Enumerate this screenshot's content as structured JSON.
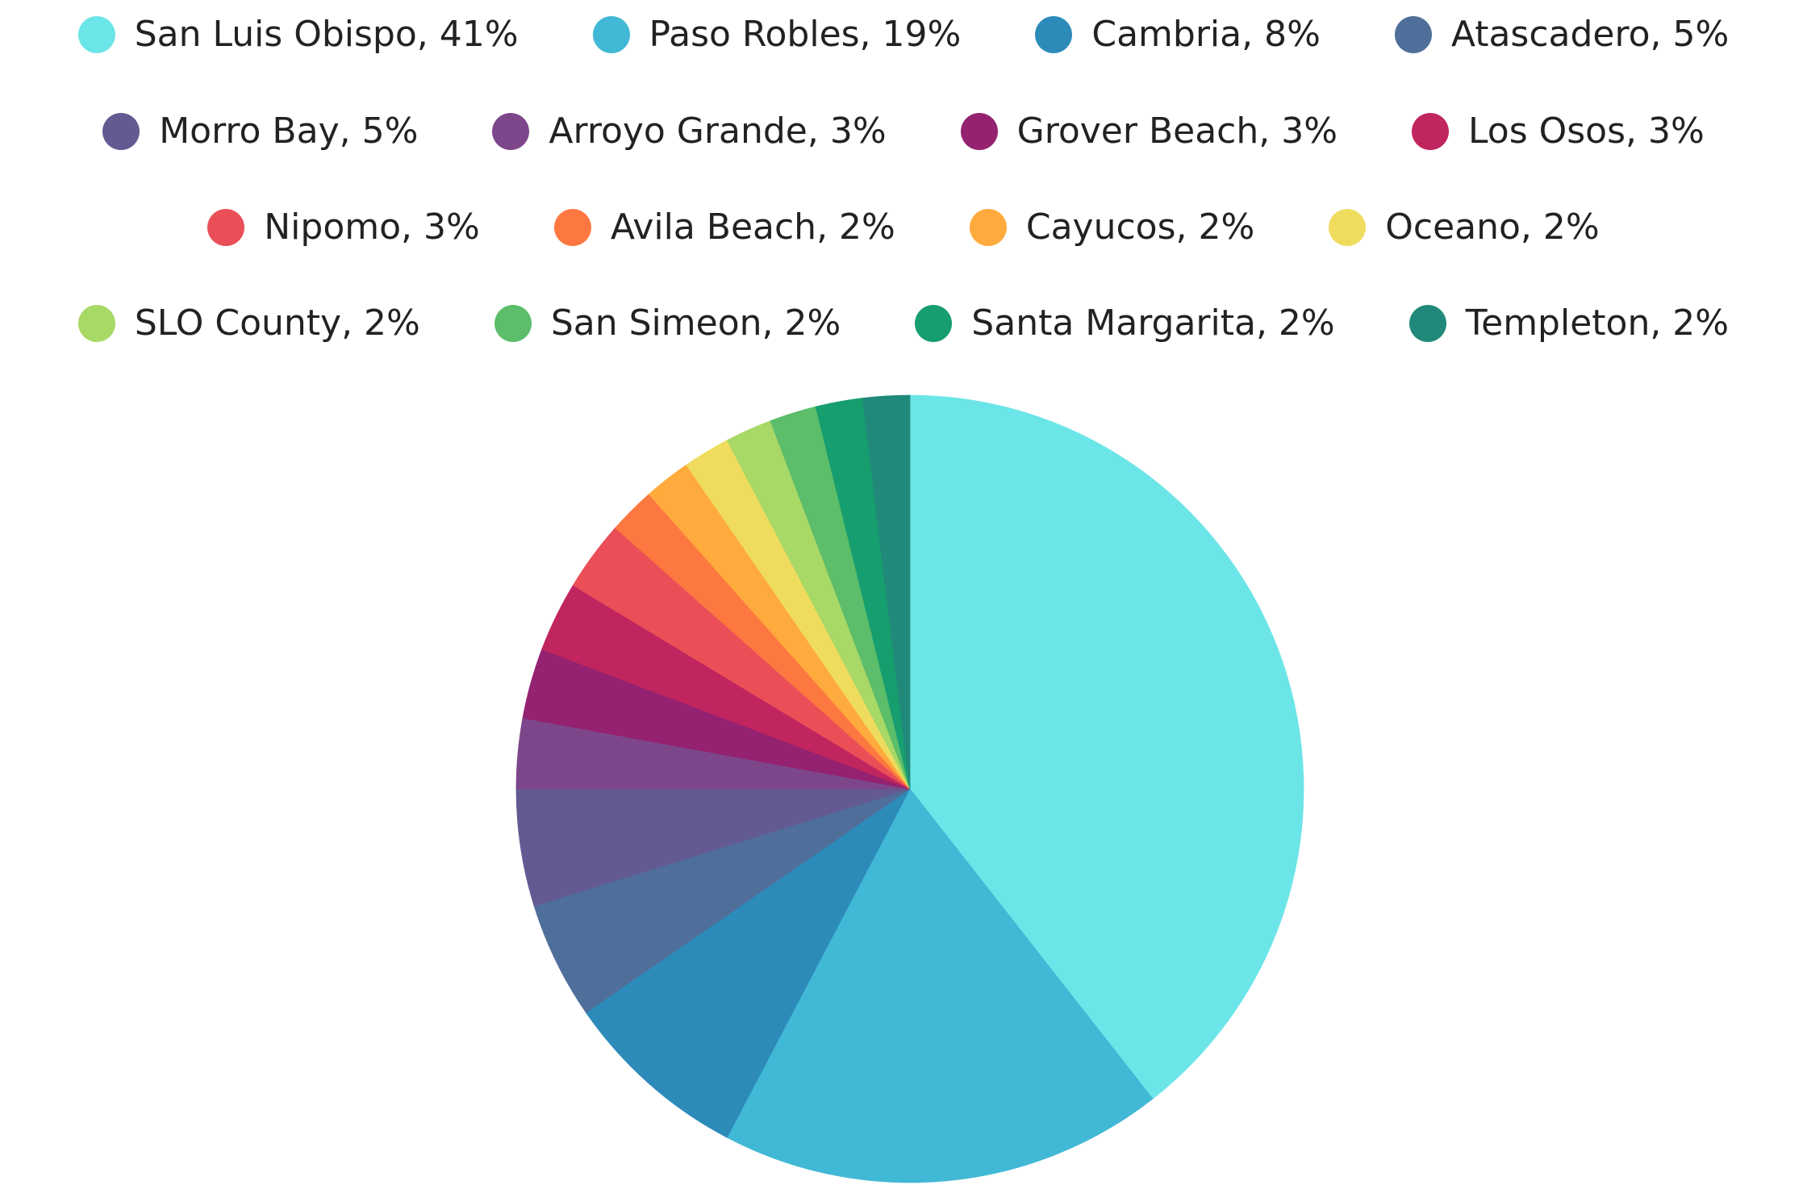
{
  "chart_data": {
    "type": "pie",
    "title": "",
    "legend_position": "top",
    "slices": [
      {
        "label": "San Luis Obispo, 41%",
        "name": "San Luis Obispo",
        "value": 41,
        "color": "#6ce5e8"
      },
      {
        "label": "Paso Robles, 19%",
        "name": "Paso Robles",
        "value": 19,
        "color": "#41b8d5"
      },
      {
        "label": "Cambria, 8%",
        "name": "Cambria",
        "value": 8,
        "color": "#2d8bba"
      },
      {
        "label": "Atascadero, 5%",
        "name": "Atascadero",
        "value": 5,
        "color": "#506e9a"
      },
      {
        "label": "Morro Bay, 5%",
        "name": "Morro Bay",
        "value": 5,
        "color": "#635a92"
      },
      {
        "label": "Arroyo Grande, 3%",
        "name": "Arroyo Grande",
        "value": 3,
        "color": "#7e468a"
      },
      {
        "label": "Grover Beach, 3%",
        "name": "Grover Beach",
        "value": 3,
        "color": "#942270"
      },
      {
        "label": "Los Osos, 3%",
        "name": "Los Osos",
        "value": 3,
        "color": "#c0255f"
      },
      {
        "label": "Nipomo, 3%",
        "name": "Nipomo",
        "value": 3,
        "color": "#ea4f58"
      },
      {
        "label": "Avila Beach, 2%",
        "name": "Avila Beach",
        "value": 2,
        "color": "#fd7840"
      },
      {
        "label": "Cayucos, 2%",
        "name": "Cayucos",
        "value": 2,
        "color": "#ffaa3c"
      },
      {
        "label": "Oceano, 2%",
        "name": "Oceano",
        "value": 2,
        "color": "#efdc5e"
      },
      {
        "label": "SLO County, 2%",
        "name": "SLO County",
        "value": 2,
        "color": "#a8d866"
      },
      {
        "label": "San Simeon, 2%",
        "name": "San Simeon",
        "value": 2,
        "color": "#5cbd6a"
      },
      {
        "label": "Santa Margarita, 2%",
        "name": "Santa Margarita",
        "value": 2,
        "color": "#169e6e"
      },
      {
        "label": "Templeton, 2%",
        "name": "Templeton",
        "value": 2,
        "color": "#21897a"
      }
    ]
  }
}
